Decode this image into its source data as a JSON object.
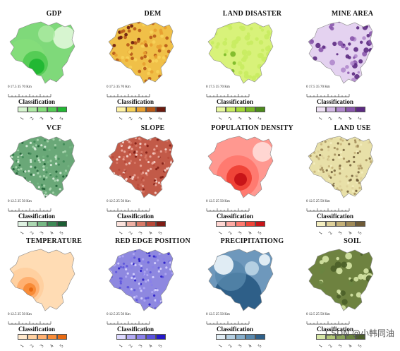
{
  "legend_title": "Classification",
  "legend_labels": [
    "1",
    "2",
    "3",
    "4",
    "5"
  ],
  "watermark": "CSDN @小韩同油",
  "panels": [
    {
      "title": "GDP",
      "scale": "0 17.5 35          70 Km",
      "colors": [
        "#d7f5d0",
        "#aeeaa4",
        "#84dd7a",
        "#55cc55",
        "#22b833"
      ],
      "base": "#7fd97a",
      "pattern": "blobs"
    },
    {
      "title": "DEM",
      "scale": "0 17.5 35          70 Km",
      "colors": [
        "#fff3a6",
        "#f7d25a",
        "#e8a030",
        "#b85a18",
        "#6b1a0e"
      ],
      "base": "#f0c048",
      "pattern": "terrain"
    },
    {
      "title": "LAND DISASTER",
      "scale": "0 17.5 35          70 Km",
      "colors": [
        "#e8f8a0",
        "#c9ec62",
        "#a4d838",
        "#7ab826",
        "#4c8a1c"
      ],
      "base": "#d8f27a",
      "pattern": "dots"
    },
    {
      "title": "MINE AREA",
      "scale": "0 17.5 35          70 Km",
      "colors": [
        "#eee0f4",
        "#d2b8e4",
        "#b088cc",
        "#8a58ac",
        "#5c2a82"
      ],
      "base": "#e4d2f0",
      "pattern": "mines"
    },
    {
      "title": "VCF",
      "scale": "0 12.5 25          50 Km",
      "colors": [
        "#dff2e2",
        "#acd8b2",
        "#76b884",
        "#3e8a56",
        "#1c5e34"
      ],
      "base": "#6aa878",
      "pattern": "fine"
    },
    {
      "title": "SLOPE",
      "scale": "0 12.5 25          50 Km",
      "colors": [
        "#fbe2dc",
        "#eeb0a4",
        "#d87a68",
        "#b84838",
        "#7e1c14"
      ],
      "base": "#c25a48",
      "pattern": "fine"
    },
    {
      "title": "POPULATION DENSITY",
      "scale": "0 12.5 25          50 Km",
      "colors": [
        "#ffd6d2",
        "#ffaaa4",
        "#ff7a70",
        "#f04438",
        "#c81418"
      ],
      "base": "#ff9890",
      "pattern": "pop"
    },
    {
      "title": "LAND USE",
      "scale": "0 12.5 25          50 Km",
      "colors": [
        "#f4eec0",
        "#ded09a",
        "#c4b078",
        "#a08a58",
        "#6e5a36"
      ],
      "base": "#e8e0a8",
      "pattern": "fine"
    },
    {
      "title": "TEMPERATURE",
      "scale": "0 12.5 25          50 Km",
      "colors": [
        "#ffe8cc",
        "#ffd0a0",
        "#ffb070",
        "#f88c38",
        "#e86a12"
      ],
      "base": "#ffdcb4",
      "pattern": "temp"
    },
    {
      "title": "RED EDGE POSITION",
      "scale": "0 12.5 25          50 Km",
      "colors": [
        "#dcd8ff",
        "#b2aaf4",
        "#8a80ea",
        "#5a52dc",
        "#2418c8"
      ],
      "base": "#8e88e0",
      "pattern": "fine"
    },
    {
      "title": "PRECIPITATIONG",
      "scale": "0 12.5 25          50 Km",
      "colors": [
        "#e0ecf4",
        "#b4cfe2",
        "#86aecb",
        "#5888ad",
        "#2e5f88"
      ],
      "base": "#6e98bc",
      "pattern": "precip"
    },
    {
      "title": "SOIL",
      "scale": "0 12.5 25          50 Km",
      "colors": [
        "#d6e6a6",
        "#b2c878",
        "#8aa45a",
        "#6a8440",
        "#4a5e28"
      ],
      "base": "#6e8240",
      "pattern": "soil"
    }
  ]
}
